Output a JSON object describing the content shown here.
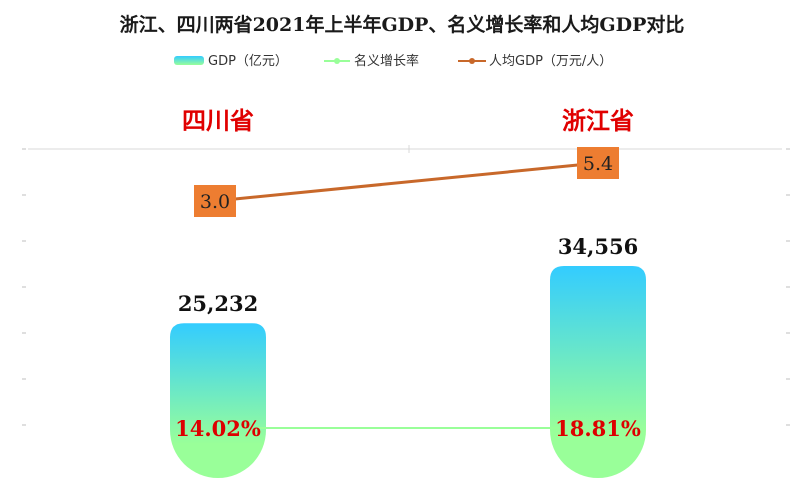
{
  "chart_data": {
    "type": "bar",
    "title": "浙江、四川两省2021年上半年GDP、名义增长率和人均GDP对比",
    "categories": [
      "四川省",
      "浙江省"
    ],
    "series": [
      {
        "name": "GDP（亿元）",
        "type": "bar",
        "values": [
          25232,
          34556
        ],
        "labels": [
          "25,232",
          "34,556"
        ]
      },
      {
        "name": "名义增长率",
        "type": "line",
        "values": [
          14.02,
          18.81
        ],
        "labels": [
          "14.02%",
          "18.81%"
        ]
      },
      {
        "name": "人均GDP（万元/人）",
        "type": "line",
        "values": [
          3.0,
          5.4
        ],
        "labels": [
          "3.0",
          "5.4"
        ]
      }
    ],
    "legend_position": "top",
    "grid": false
  },
  "colors": {
    "bar_top": "#33ccff",
    "bar_bottom": "#99ff99",
    "growth_line": "#99ff99",
    "per_capita_line": "#c8682a",
    "per_capita_box": "#ed7d31",
    "province_text": "#e00000",
    "rate_text": "#dd0000"
  }
}
